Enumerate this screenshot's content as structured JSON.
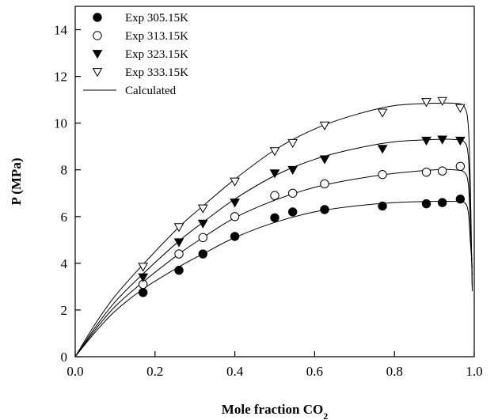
{
  "chart_data": {
    "type": "scatter",
    "title": "",
    "xlabel": "Mole fraction CO",
    "xlabel_subscript": "2",
    "ylabel": "P (MPa)",
    "xlim": [
      0.0,
      1.0
    ],
    "ylim": [
      0,
      15
    ],
    "x_ticks": [
      0.0,
      0.2,
      0.4,
      0.6,
      0.8,
      1.0
    ],
    "x_tick_labels": [
      "0.0",
      "0.2",
      "0.4",
      "0.6",
      "0.8",
      "1.0"
    ],
    "y_ticks": [
      0,
      2,
      4,
      6,
      8,
      10,
      12,
      14
    ],
    "y_tick_labels": [
      "0",
      "2",
      "4",
      "6",
      "8",
      "10",
      "12",
      "14"
    ],
    "grid": false,
    "legend_position": "top-left",
    "series": [
      {
        "name": "Exp 305.15K",
        "marker": "filled-circle",
        "x": [
          0.17,
          0.26,
          0.32,
          0.4,
          0.5,
          0.545,
          0.625,
          0.77,
          0.88,
          0.92,
          0.965
        ],
        "y": [
          2.75,
          3.7,
          4.4,
          5.15,
          5.95,
          6.2,
          6.3,
          6.45,
          6.55,
          6.6,
          6.75
        ]
      },
      {
        "name": "Exp 313.15K",
        "marker": "open-circle",
        "x": [
          0.17,
          0.26,
          0.32,
          0.4,
          0.5,
          0.545,
          0.625,
          0.77,
          0.88,
          0.92,
          0.965
        ],
        "y": [
          3.1,
          4.4,
          5.1,
          6.0,
          6.9,
          7.0,
          7.4,
          7.8,
          7.9,
          7.95,
          8.15
        ]
      },
      {
        "name": "Exp 323.15K",
        "marker": "filled-triangle-down",
        "x": [
          0.17,
          0.26,
          0.32,
          0.4,
          0.5,
          0.545,
          0.625,
          0.77,
          0.88,
          0.92,
          0.965
        ],
        "y": [
          3.4,
          4.9,
          5.7,
          6.6,
          7.85,
          8.0,
          8.45,
          8.9,
          9.25,
          9.3,
          9.25
        ]
      },
      {
        "name": "Exp 333.15K",
        "marker": "open-triangle-down",
        "x": [
          0.17,
          0.26,
          0.32,
          0.4,
          0.5,
          0.545,
          0.625,
          0.77,
          0.88,
          0.92,
          0.965
        ],
        "y": [
          3.85,
          5.55,
          6.35,
          7.5,
          8.8,
          9.15,
          9.9,
          10.45,
          10.9,
          10.95,
          10.65
        ]
      }
    ],
    "calculated": {
      "name": "Calculated",
      "curves": [
        {
          "x": [
            0.0,
            0.05,
            0.1,
            0.17,
            0.26,
            0.32,
            0.4,
            0.5,
            0.6,
            0.7,
            0.8,
            0.9,
            0.95,
            0.975,
            0.985,
            0.99,
            0.995
          ],
          "y": [
            0.0,
            1.05,
            1.95,
            2.9,
            3.85,
            4.4,
            5.1,
            5.75,
            6.2,
            6.45,
            6.6,
            6.65,
            6.65,
            6.6,
            6.2,
            5.0,
            3.8
          ]
        },
        {
          "x": [
            0.0,
            0.05,
            0.1,
            0.17,
            0.26,
            0.32,
            0.4,
            0.5,
            0.6,
            0.7,
            0.8,
            0.9,
            0.95,
            0.975,
            0.985,
            0.99,
            0.995
          ],
          "y": [
            0.0,
            1.15,
            2.15,
            3.2,
            4.4,
            5.1,
            5.95,
            6.7,
            7.25,
            7.6,
            7.85,
            8.0,
            8.0,
            7.9,
            7.4,
            5.8,
            3.5
          ]
        },
        {
          "x": [
            0.0,
            0.05,
            0.1,
            0.17,
            0.26,
            0.32,
            0.4,
            0.5,
            0.6,
            0.7,
            0.8,
            0.9,
            0.95,
            0.975,
            0.985,
            0.99,
            0.995
          ],
          "y": [
            0.0,
            1.25,
            2.35,
            3.55,
            4.95,
            5.75,
            6.75,
            7.75,
            8.45,
            8.9,
            9.2,
            9.3,
            9.3,
            9.2,
            8.6,
            6.5,
            3.0
          ]
        },
        {
          "x": [
            0.0,
            0.05,
            0.1,
            0.17,
            0.26,
            0.32,
            0.4,
            0.5,
            0.6,
            0.7,
            0.8,
            0.9,
            0.95,
            0.975,
            0.985,
            0.99,
            0.995
          ],
          "y": [
            0.0,
            1.4,
            2.6,
            3.95,
            5.55,
            6.45,
            7.6,
            8.85,
            9.75,
            10.35,
            10.75,
            10.85,
            10.85,
            10.7,
            9.9,
            7.5,
            2.8
          ]
        }
      ]
    }
  }
}
